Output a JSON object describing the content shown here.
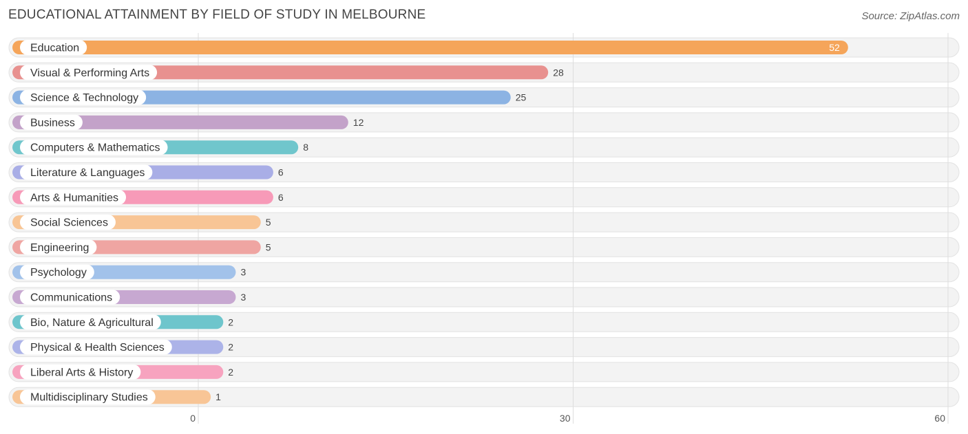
{
  "header": {
    "title": "EDUCATIONAL ATTAINMENT BY FIELD OF STUDY IN MELBOURNE",
    "source": "Source: ZipAtlas.com"
  },
  "chart_data": {
    "type": "bar",
    "orientation": "horizontal",
    "title": "EDUCATIONAL ATTAINMENT BY FIELD OF STUDY IN MELBOURNE",
    "xlabel": "",
    "ylabel": "",
    "xlim": [
      0,
      60
    ],
    "ticks": [
      0,
      30,
      60
    ],
    "tick_labels": [
      "0",
      "30",
      "60"
    ],
    "grid": true,
    "categories": [
      "Education",
      "Visual & Performing Arts",
      "Science & Technology",
      "Business",
      "Computers & Mathematics",
      "Literature & Languages",
      "Arts & Humanities",
      "Social Sciences",
      "Engineering",
      "Psychology",
      "Communications",
      "Bio, Nature & Agricultural",
      "Physical & Health Sciences",
      "Liberal Arts & History",
      "Multidisciplinary Studies"
    ],
    "values": [
      52,
      28,
      25,
      12,
      8,
      6,
      6,
      5,
      5,
      3,
      3,
      2,
      2,
      2,
      1
    ],
    "value_labels": [
      "52",
      "28",
      "25",
      "12",
      "8",
      "6",
      "6",
      "5",
      "5",
      "3",
      "3",
      "2",
      "2",
      "2",
      "1"
    ],
    "colors": [
      "#f5a55a",
      "#e8918f",
      "#8cb3e3",
      "#c3a2c9",
      "#70c6cc",
      "#a9aee6",
      "#f79ab8",
      "#f8c595",
      "#efa5a2",
      "#a2c2ea",
      "#c7a8d1",
      "#6ec5cc",
      "#acb3e8",
      "#f7a3bf",
      "#f8c596"
    ]
  }
}
